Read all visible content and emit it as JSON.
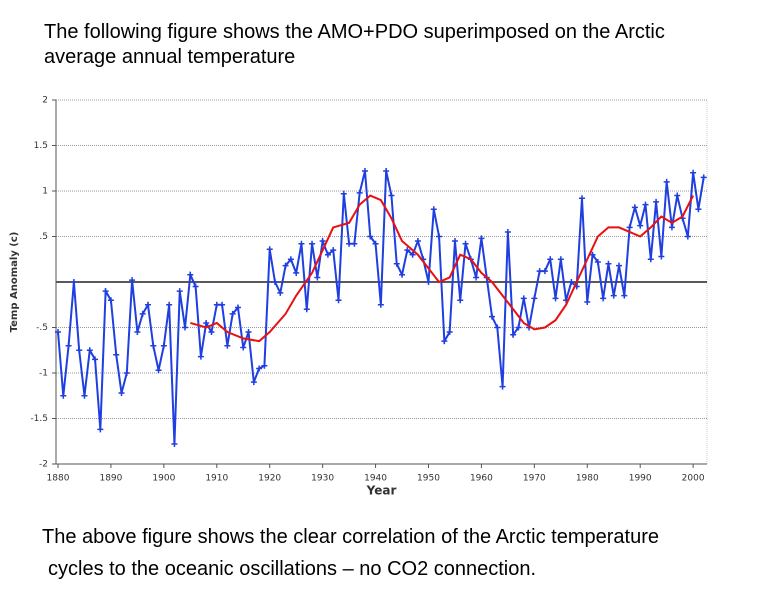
{
  "header": {
    "lines": [
      "The following figure shows the AMO+PDO superimposed on the Arctic",
      "average annual temperature"
    ]
  },
  "chart_data": {
    "type": "line",
    "xlabel": "Year",
    "ylabel": "Temp Anomaly (c)",
    "xlim": [
      1880,
      2003
    ],
    "xticks": [
      1880,
      1890,
      1900,
      1910,
      1920,
      1930,
      1940,
      1950,
      1960,
      1970,
      1980,
      1990,
      2000
    ],
    "ylim": [
      -2,
      2
    ],
    "yticks": [
      2,
      1.5,
      1,
      {
        "value": 0.5,
        "label": ".5"
      },
      {
        "value": -0.5,
        "label": "-.5"
      },
      -1,
      -1.5,
      -2
    ],
    "grid": true,
    "series": [
      {
        "color": "#1f3fe0",
        "markers": true,
        "x": [
          1880,
          1881,
          1882,
          1883,
          1884,
          1885,
          1886,
          1887,
          1888,
          1889,
          1890,
          1891,
          1892,
          1893,
          1894,
          1895,
          1896,
          1897,
          1898,
          1899,
          1900,
          1901,
          1902,
          1903,
          1904,
          1905,
          1906,
          1907,
          1908,
          1909,
          1910,
          1911,
          1912,
          1913,
          1914,
          1915,
          1916,
          1917,
          1918,
          1919,
          1920,
          1921,
          1922,
          1923,
          1924,
          1925,
          1926,
          1927,
          1928,
          1929,
          1930,
          1931,
          1932,
          1933,
          1934,
          1935,
          1936,
          1937,
          1938,
          1939,
          1940,
          1941,
          1942,
          1943,
          1944,
          1945,
          1946,
          1947,
          1948,
          1949,
          1950,
          1951,
          1952,
          1953,
          1954,
          1955,
          1956,
          1957,
          1958,
          1959,
          1960,
          1961,
          1962,
          1963,
          1964,
          1965,
          1966,
          1967,
          1968,
          1969,
          1970,
          1971,
          1972,
          1973,
          1974,
          1975,
          1976,
          1977,
          1978,
          1979,
          1980,
          1981,
          1982,
          1983,
          1984,
          1985,
          1986,
          1987,
          1988,
          1989,
          1990,
          1991,
          1992,
          1993,
          1994,
          1995,
          1996,
          1997,
          1998,
          1999,
          2000,
          2001,
          2002
        ],
        "values": [
          -0.55,
          -1.25,
          -0.7,
          0,
          -0.75,
          -1.25,
          -0.75,
          -0.85,
          -1.62,
          -0.1,
          -0.2,
          -0.8,
          -1.22,
          -1.0,
          0.02,
          -0.55,
          -0.35,
          -0.25,
          -0.7,
          -0.97,
          -0.7,
          -0.25,
          -1.78,
          -0.1,
          -0.5,
          0.08,
          -0.05,
          -0.82,
          -0.45,
          -0.55,
          -0.25,
          -0.25,
          -0.7,
          -0.35,
          -0.28,
          -0.72,
          -0.55,
          -1.1,
          -0.95,
          -0.92,
          0.36,
          0.0,
          -0.12,
          0.18,
          0.25,
          0.1,
          0.42,
          -0.3,
          0.42,
          0.05,
          0.45,
          0.3,
          0.35,
          -0.2,
          0.97,
          0.42,
          0.42,
          0.98,
          1.22,
          0.5,
          0.42,
          -0.25,
          1.22,
          0.95,
          0.2,
          0.08,
          0.35,
          0.3,
          0.45,
          0.25,
          0.0,
          0.8,
          0.5,
          -0.65,
          -0.55,
          0.45,
          -0.2,
          0.42,
          0.25,
          0.05,
          0.48,
          0.05,
          -0.38,
          -0.5,
          -1.15,
          0.55,
          -0.58,
          -0.5,
          -0.18,
          -0.5,
          -0.18,
          0.12,
          0.12,
          0.25,
          -0.18,
          0.25,
          -0.2,
          0.0,
          -0.05,
          0.92,
          -0.22,
          0.3,
          0.22,
          -0.18,
          0.2,
          -0.15,
          0.18,
          -0.15,
          0.6,
          0.82,
          0.62,
          0.85,
          0.25,
          0.88,
          0.28,
          1.1,
          0.6,
          0.95,
          0.7,
          0.5,
          1.2,
          0.8,
          1.15
        ]
      },
      {
        "color": "#e81010",
        "markers": false,
        "x": [
          1905,
          1908,
          1910,
          1912,
          1915,
          1918,
          1920,
          1923,
          1925,
          1928,
          1930,
          1932,
          1935,
          1937,
          1939,
          1941,
          1943,
          1945,
          1948,
          1950,
          1952,
          1954,
          1956,
          1958,
          1960,
          1962,
          1964,
          1966,
          1968,
          1970,
          1972,
          1974,
          1976,
          1978,
          1980,
          1982,
          1984,
          1986,
          1988,
          1990,
          1992,
          1994,
          1996,
          1998,
          2000
        ],
        "values": [
          -0.45,
          -0.5,
          -0.45,
          -0.55,
          -0.62,
          -0.65,
          -0.55,
          -0.35,
          -0.15,
          0.1,
          0.35,
          0.6,
          0.65,
          0.85,
          0.95,
          0.9,
          0.7,
          0.45,
          0.3,
          0.15,
          0.0,
          0.05,
          0.3,
          0.25,
          0.1,
          0.0,
          -0.15,
          -0.3,
          -0.45,
          -0.52,
          -0.5,
          -0.42,
          -0.25,
          0.0,
          0.25,
          0.5,
          0.6,
          0.6,
          0.55,
          0.5,
          0.6,
          0.72,
          0.65,
          0.72,
          0.95
        ]
      }
    ]
  },
  "footer": {
    "lines": [
      "The above figure shows the clear correlation of the Arctic temperature",
      "cycles to the oceanic oscillations – no CO2 connection."
    ]
  }
}
